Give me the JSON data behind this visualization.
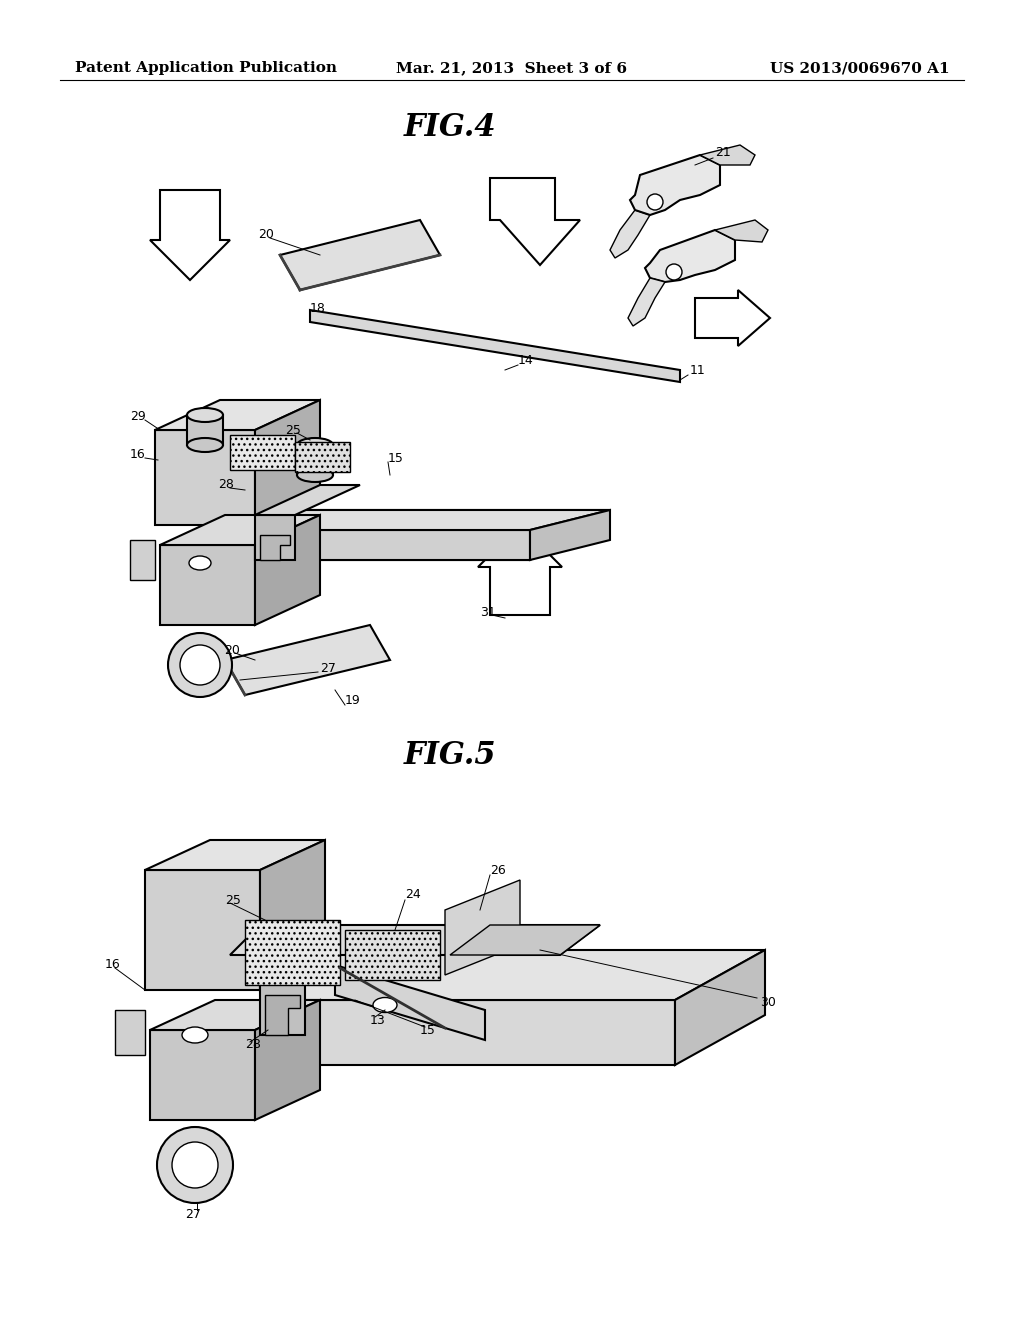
{
  "background_color": "#ffffff",
  "header_left": "Patent Application Publication",
  "header_center": "Mar. 21, 2013  Sheet 3 of 6",
  "header_right": "US 2013/0069670 A1",
  "fig4_label": "FIG.4",
  "fig5_label": "FIG.5",
  "line_color": "#000000",
  "light_gray": "#e8e8e8",
  "mid_gray": "#c8c8c8",
  "dark_gray": "#a0a0a0",
  "dot_gray": "#d0d0d0",
  "page_width": 10.24,
  "page_height": 13.2,
  "dpi": 100
}
